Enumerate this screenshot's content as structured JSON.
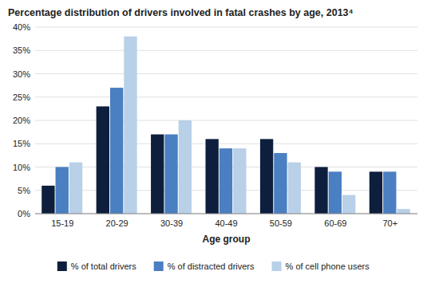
{
  "chart_data": {
    "type": "bar",
    "title": "Percentage distribution of drivers involved in fatal crashes by age, 2013⁴",
    "categories": [
      "15-19",
      "20-29",
      "30-39",
      "40-49",
      "50-59",
      "60-69",
      "70+"
    ],
    "series": [
      {
        "name": "% of total drivers",
        "color": "#0d1f3c",
        "values": [
          6,
          23,
          17,
          16,
          16,
          10,
          9
        ]
      },
      {
        "name": "% of distracted drivers",
        "color": "#4a7fc1",
        "values": [
          10,
          27,
          17,
          14,
          13,
          9,
          9
        ]
      },
      {
        "name": "% of cell phone users",
        "color": "#b8d0e8",
        "values": [
          11,
          38,
          20,
          14,
          11,
          4,
          1
        ]
      }
    ],
    "xlabel": "Age group",
    "ylim": [
      0,
      40
    ],
    "yticks": [
      {
        "value": 0,
        "label": "0%"
      },
      {
        "value": 5,
        "label": "5%"
      },
      {
        "value": 10,
        "label": "10%"
      },
      {
        "value": 15,
        "label": "15%"
      },
      {
        "value": 20,
        "label": "20%"
      },
      {
        "value": 25,
        "label": "25%"
      },
      {
        "value": 30,
        "label": "30%"
      },
      {
        "value": 35,
        "label": "35%"
      },
      {
        "value": 40,
        "label": "40%"
      }
    ],
    "grid": true,
    "legend": "bottom"
  }
}
